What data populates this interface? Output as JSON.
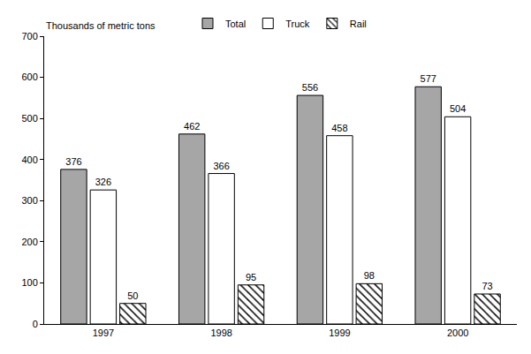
{
  "chart_data": {
    "type": "bar",
    "ylabel": "Thousands of metric tons",
    "categories": [
      "1997",
      "1998",
      "1999",
      "2000"
    ],
    "series": [
      {
        "name": "Total",
        "color": "#a6a6a6",
        "values": [
          376,
          462,
          556,
          577
        ]
      },
      {
        "name": "Truck",
        "color": "#ffffff",
        "values": [
          326,
          366,
          458,
          504
        ]
      },
      {
        "name": "Rail",
        "color": "#ffffff",
        "marker": "hatched",
        "values": [
          50,
          95,
          98,
          73
        ]
      }
    ],
    "ylim": [
      0,
      700
    ],
    "yticks": [
      0,
      100,
      200,
      300,
      400,
      500,
      600,
      700
    ],
    "grid": false,
    "legend": "top",
    "data_labels": true
  }
}
